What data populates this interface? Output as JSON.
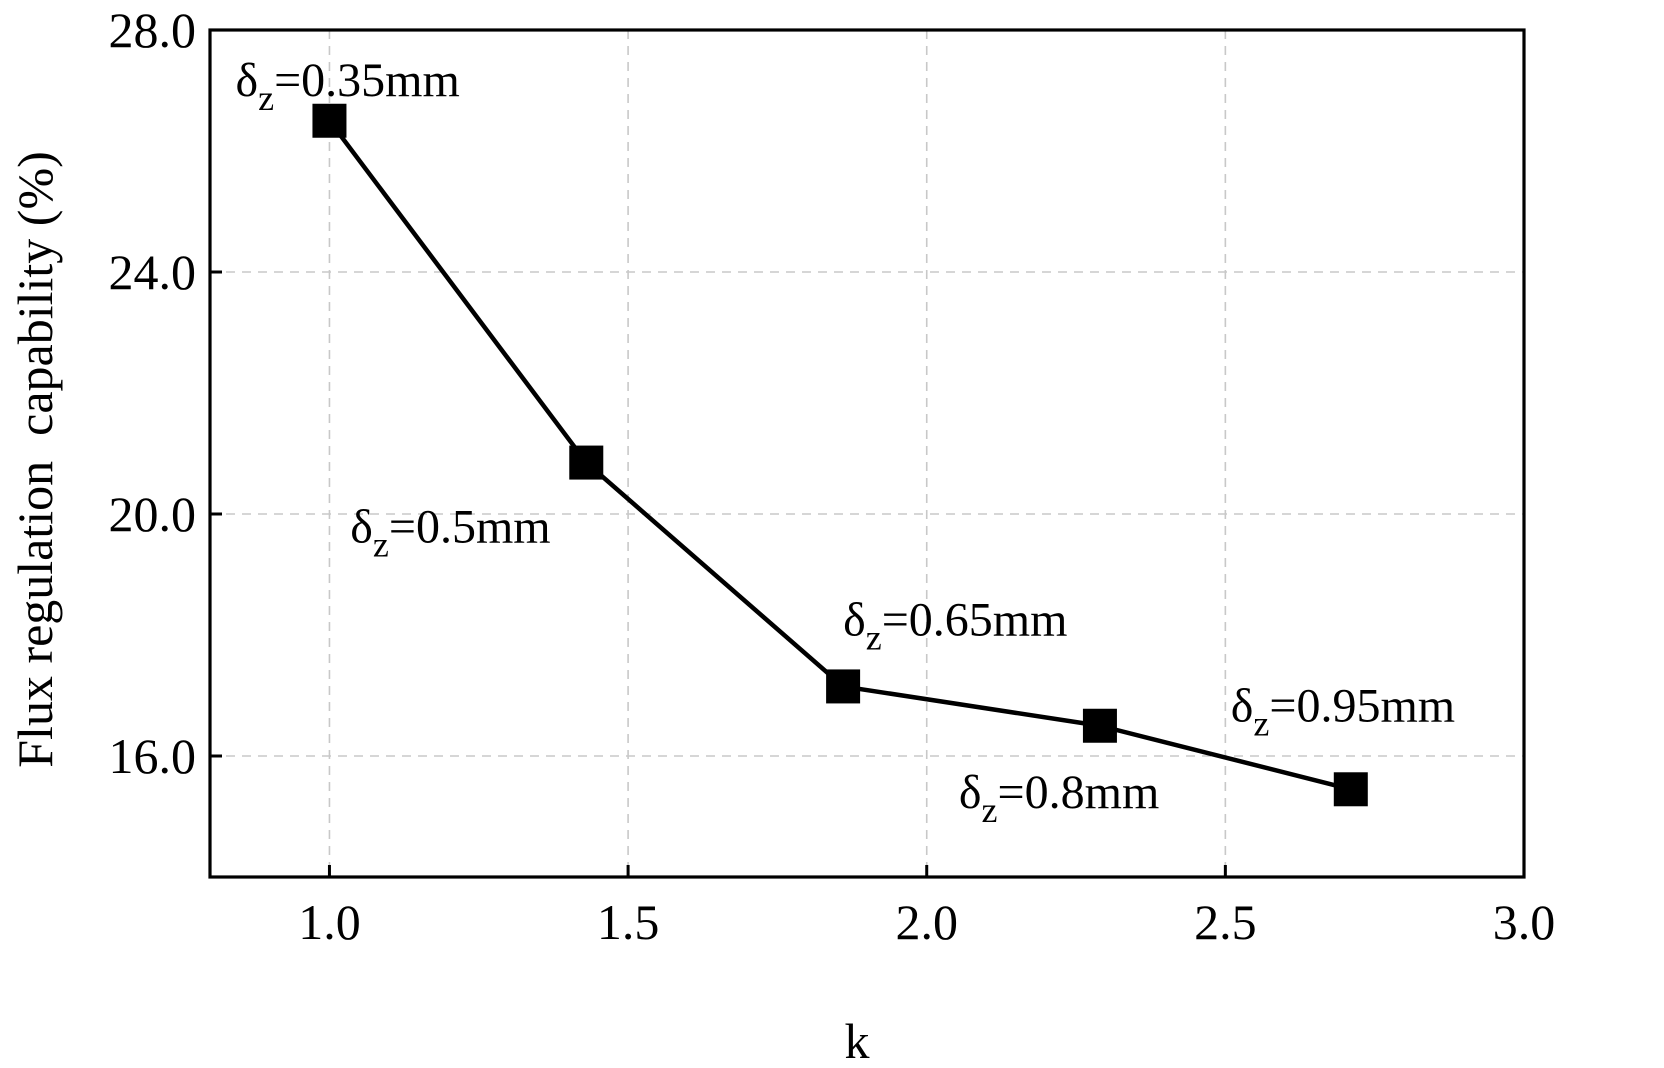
{
  "chart_data": {
    "type": "line",
    "xlabel": "k",
    "ylabel": "Flux regulation  capability (%)",
    "xlim": [
      0.8,
      3.0
    ],
    "ylim": [
      14.0,
      28.0
    ],
    "x_ticks": [
      1.0,
      1.5,
      2.0,
      2.5,
      3.0
    ],
    "x_tick_labels": [
      "1.0",
      "1.5",
      "2.0",
      "2.5",
      "3.0"
    ],
    "y_ticks": [
      16.0,
      20.0,
      24.0,
      28.0
    ],
    "y_tick_labels": [
      "16.0",
      "20.0",
      "24.0",
      "28.0"
    ],
    "grid": true,
    "marker": "square",
    "color": "#000000",
    "series": [
      {
        "x": [
          1.0,
          1.43,
          1.86,
          2.29,
          2.71
        ],
        "y": [
          26.5,
          20.85,
          17.15,
          16.5,
          15.45
        ]
      }
    ],
    "annotations": [
      {
        "symbol": "δ",
        "sub": "z",
        "text": "=0.35mm",
        "x": 1.0,
        "y": 26.5
      },
      {
        "symbol": "δ",
        "sub": "z",
        "text": "=0.5mm",
        "x": 1.43,
        "y": 20.85
      },
      {
        "symbol": "δ",
        "sub": "z",
        "text": "=0.65mm",
        "x": 1.86,
        "y": 17.15
      },
      {
        "symbol": "δ",
        "sub": "z",
        "text": "=0.8mm",
        "x": 2.29,
        "y": 16.5
      },
      {
        "symbol": "δ",
        "sub": "z",
        "text": "=0.95mm",
        "x": 2.71,
        "y": 15.45
      }
    ]
  }
}
